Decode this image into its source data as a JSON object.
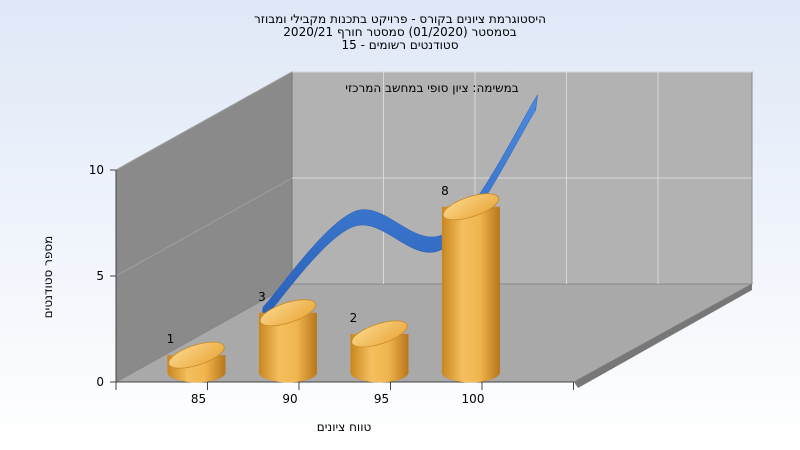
{
  "chart_data": {
    "type": "bar",
    "title_lines": [
      "היסטוגרמת ציונים בקורס - פרויקט בתכנות מקבילי ומבוזר",
      "בסמסטר  (01/2020)  סמסטר חורף  2020/21",
      "סטודנטים רשומים - 15"
    ],
    "subtitle": "במשימה: ציון סופי במחשב המרכזי",
    "xlabel": "טווח ציונים",
    "ylabel": "מספר סטודנטים",
    "categories": [
      "85",
      "90",
      "95",
      "100"
    ],
    "values": [
      1,
      3,
      2,
      8
    ],
    "data_labels": [
      "1",
      "3",
      "2",
      "8"
    ],
    "ylim": [
      0,
      10
    ],
    "yticks": [
      "0",
      "5",
      "10"
    ],
    "curve_values": [
      1,
      5.5,
      4.5,
      11
    ],
    "colors": {
      "bar": "#e8a83a",
      "bar_dark": "#b87818",
      "bar_top": "#f6c665",
      "curve": "#3a7bd5",
      "curve_dark": "#1f56b0"
    },
    "grid": true,
    "legend": "none"
  }
}
